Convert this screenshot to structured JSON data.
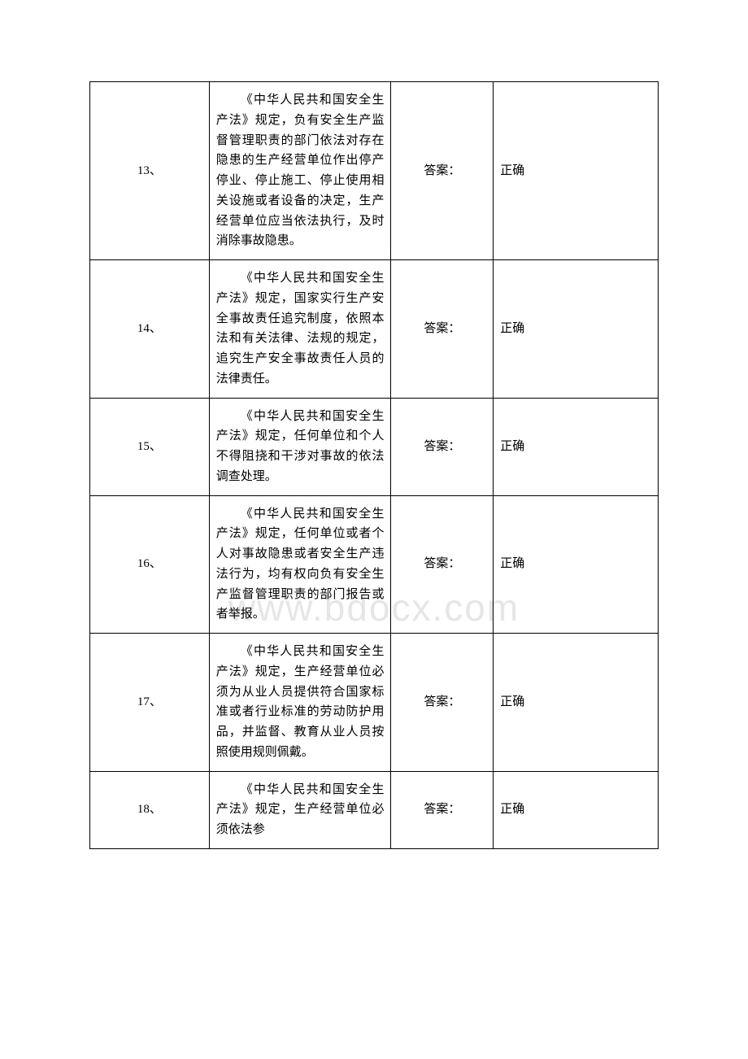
{
  "watermark_text": "www.bdocx.com",
  "table": {
    "border_color": "#000000",
    "background_color": "#ffffff",
    "text_color": "#000000",
    "font_size_pt": 11,
    "line_height": 1.65,
    "columns": [
      {
        "key": "number",
        "width_pct": 21,
        "align": "center"
      },
      {
        "key": "question",
        "width_pct": 32,
        "align": "justify",
        "text_indent_em": 2
      },
      {
        "key": "answer_label",
        "width_pct": 18,
        "align": "center"
      },
      {
        "key": "answer_value",
        "width_pct": 29,
        "align": "left"
      }
    ],
    "rows": [
      {
        "number": "13、",
        "question": "《中华人民共和国安全生产法》规定，负有安全生产监督管理职责的部门依法对存在隐患的生产经营单位作出停产停业、停止施工、停止使用相关设施或者设备的决定，生产经营单位应当依法执行，及时消除事故隐患。",
        "answer_label": "答案：",
        "answer_value": "正确"
      },
      {
        "number": "14、",
        "question": "《中华人民共和国安全生产法》规定，国家实行生产安全事故责任追究制度，依照本法和有关法律、法规的规定，追究生产安全事故责任人员的法律责任。",
        "answer_label": "答案：",
        "answer_value": "正确"
      },
      {
        "number": "15、",
        "question": "《中华人民共和国安全生产法》规定，任何单位和个人不得阻挠和干涉对事故的依法调查处理。",
        "answer_label": "答案：",
        "answer_value": "正确"
      },
      {
        "number": "16、",
        "question": "《中华人民共和国安全生产法》规定，任何单位或者个人对事故隐患或者安全生产违法行为，均有权向负有安全生产监督管理职责的部门报告或者举报。",
        "answer_label": "答案：",
        "answer_value": "正确"
      },
      {
        "number": "17、",
        "question": "《中华人民共和国安全生产法》规定，生产经营单位必须为从业人员提供符合国家标准或者行业标准的劳动防护用品，并监督、教育从业人员按照使用规则佩戴。",
        "answer_label": "答案：",
        "answer_value": "正确"
      },
      {
        "number": "18、",
        "question": "《中华人民共和国安全生产法》规定，生产经营单位必须依法参",
        "answer_label": "答案：",
        "answer_value": "正确"
      }
    ]
  }
}
